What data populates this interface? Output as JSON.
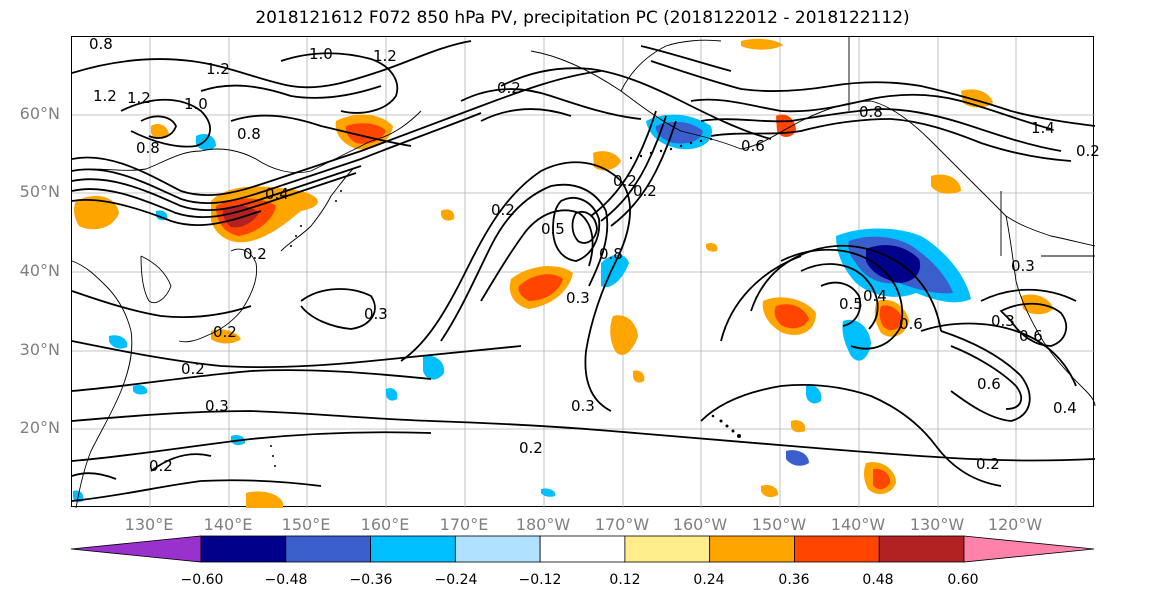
{
  "title": "2018121612 F072 850 hPa PV, precipitation PC (2018122012 - 2018122112)",
  "lat_labels": [
    "60°N",
    "50°N",
    "40°N",
    "30°N",
    "20°N"
  ],
  "lon_labels": [
    "130°E",
    "140°E",
    "150°E",
    "160°E",
    "170°E",
    "180°W",
    "170°W",
    "160°W",
    "150°W",
    "140°W",
    "130°W",
    "120°W"
  ],
  "colorbar": {
    "ticks": [
      "−0.60",
      "−0.48",
      "−0.36",
      "−0.24",
      "−0.12",
      "0.12",
      "0.24",
      "0.36",
      "0.48",
      "0.60"
    ],
    "colors": [
      "#9932cc",
      "#00008b",
      "#3a5fcd",
      "#00bfff",
      "#b0e2ff",
      "#ffffff",
      "#ffec8b",
      "#ffa500",
      "#ff4500",
      "#b22222",
      "#ff82ab"
    ]
  },
  "contour_labels": [
    "0.8",
    "1.2",
    "1.0",
    "1.2",
    "1.2",
    "1.0",
    "0.8",
    "0.8",
    "0.4",
    "0.2",
    "0.2",
    "0.2",
    "0.3",
    "0.2",
    "0.3",
    "0.2",
    "0.2",
    "0.5",
    "0.8",
    "0.3",
    "0.2",
    "0.2",
    "0.3",
    "0.2",
    "0.4",
    "0.6",
    "0.5",
    "0.8",
    "1.4",
    "0.3",
    "0.6",
    "0.6",
    "0.4",
    "0.2",
    "0.3",
    "0.2",
    "0.6",
    "1.2"
  ]
}
